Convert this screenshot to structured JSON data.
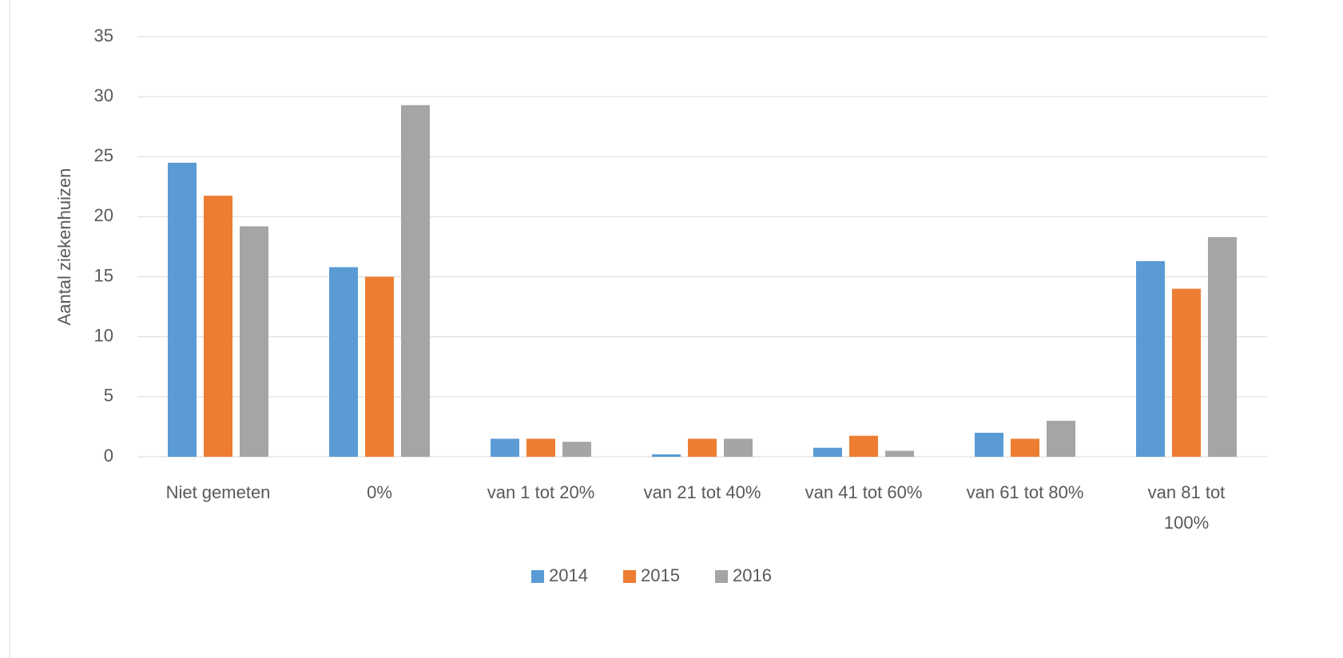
{
  "chart_data": {
    "type": "bar",
    "y_label": "Aantal ziekenhuizen",
    "categories": [
      "Niet gemeten",
      "0%",
      "van 1 tot 20%",
      "van 21 tot 40%",
      "van 41 tot 60%",
      "van 61 tot 80%",
      "van 81 tot 100%"
    ],
    "series": [
      {
        "name": "2014",
        "color": "#5b9bd5",
        "values": [
          24.5,
          15.8,
          1.5,
          0.2,
          0.75,
          2.0,
          16.3
        ]
      },
      {
        "name": "2015",
        "color": "#ed7d31",
        "values": [
          21.75,
          15.0,
          1.5,
          1.5,
          1.75,
          1.5,
          14.0
        ]
      },
      {
        "name": "2016",
        "color": "#a5a5a5",
        "values": [
          19.2,
          29.3,
          1.25,
          1.5,
          0.5,
          3.0,
          18.3
        ]
      }
    ],
    "ylim": [
      0,
      35
    ],
    "yticks": [
      0,
      5,
      10,
      15,
      20,
      25,
      30,
      35
    ],
    "grid": true,
    "legend": "bottom"
  }
}
